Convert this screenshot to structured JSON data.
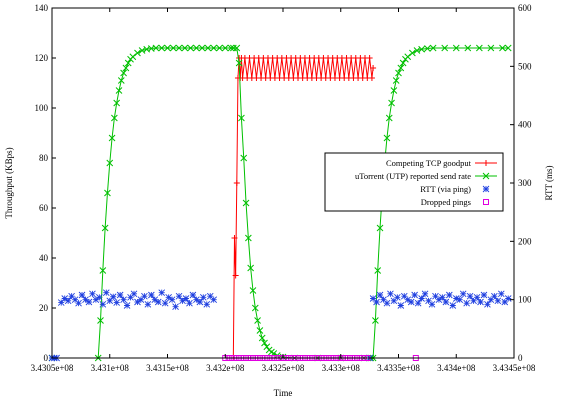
{
  "chart_data": {
    "type": "scatter",
    "title": "",
    "xlabel": "Time",
    "ylabel": "Throughput (KBps)",
    "y2label": "RTT (ms)",
    "xlim": [
      343050000,
      343450000
    ],
    "ylim": [
      0,
      140
    ],
    "y2lim": [
      0,
      600
    ],
    "x_ticks": [
      343050000,
      343100000,
      343150000,
      343200000,
      343250000,
      343300000,
      343350000,
      343400000,
      343450000
    ],
    "x_tick_labels": [
      "3.4305e+08",
      "3.431e+08",
      "3.4315e+08",
      "3.432e+08",
      "3.4325e+08",
      "3.433e+08",
      "3.4335e+08",
      "3.434e+08",
      "3.4345e+08"
    ],
    "y_ticks": [
      0,
      20,
      40,
      60,
      80,
      100,
      120,
      140
    ],
    "y2_ticks": [
      0,
      100,
      200,
      300,
      400,
      500,
      600
    ],
    "legend_position": "right",
    "series": [
      {
        "name": "Competing TCP goodput",
        "axis": "left",
        "color": "#ff0000",
        "marker": "plus",
        "style": "linespoints",
        "x": [
          343207000,
          343208000,
          343209000,
          343210000,
          343211000,
          343212000,
          343213000,
          343214000,
          343215000,
          343217000,
          343219000,
          343221000,
          343223000,
          343225000,
          343227000,
          343229000,
          343231000,
          343233000,
          343235000,
          343237000,
          343239000,
          343241000,
          343243000,
          343245000,
          343247000,
          343249000,
          343251000,
          343253000,
          343255000,
          343257000,
          343259000,
          343261000,
          343263000,
          343265000,
          343267000,
          343269000,
          343271000,
          343273000,
          343275000,
          343277000,
          343279000,
          343281000,
          343283000,
          343285000,
          343287000,
          343289000,
          343291000,
          343293000,
          343295000,
          343297000,
          343299000,
          343301000,
          343303000,
          343305000,
          343307000,
          343309000,
          343311000,
          343313000,
          343315000,
          343317000,
          343319000,
          343321000,
          343323000,
          343325000,
          343327000,
          343328000
        ],
        "y": [
          0,
          48,
          33,
          70,
          112,
          120,
          112,
          120,
          112,
          120,
          112,
          120,
          112,
          120,
          112,
          120,
          112,
          120,
          112,
          120,
          112,
          120,
          112,
          120,
          112,
          120,
          112,
          120,
          112,
          120,
          112,
          120,
          112,
          120,
          112,
          120,
          112,
          120,
          112,
          120,
          112,
          120,
          112,
          120,
          112,
          120,
          112,
          120,
          112,
          120,
          112,
          120,
          112,
          120,
          112,
          120,
          112,
          120,
          112,
          120,
          112,
          120,
          112,
          120,
          112,
          116
        ]
      },
      {
        "name": "uTorrent (UTP) reported send rate",
        "axis": "left",
        "color": "#00c000",
        "marker": "x",
        "style": "linespoints",
        "x": [
          343050000,
          343090000,
          343092000,
          343094000,
          343096000,
          343098000,
          343100000,
          343102000,
          343104000,
          343106000,
          343108000,
          343110000,
          343112000,
          343114000,
          343116000,
          343118000,
          343120000,
          343124000,
          343128000,
          343132000,
          343136000,
          343140000,
          343145000,
          343150000,
          343155000,
          343160000,
          343165000,
          343170000,
          343175000,
          343180000,
          343185000,
          343190000,
          343195000,
          343200000,
          343205000,
          343207000,
          343210000,
          343212000,
          343214000,
          343216000,
          343218000,
          343220000,
          343222000,
          343224000,
          343226000,
          343228000,
          343230000,
          343232000,
          343234000,
          343236000,
          343238000,
          343240000,
          343242000,
          343245000,
          343250000,
          343260000,
          343280000,
          343300000,
          343320000,
          343326000,
          343328000,
          343330000,
          343332000,
          343334000,
          343336000,
          343338000,
          343340000,
          343342000,
          343344000,
          343346000,
          343348000,
          343350000,
          343352000,
          343354000,
          343356000,
          343358000,
          343362000,
          343366000,
          343370000,
          343375000,
          343380000,
          343390000,
          343400000,
          343410000,
          343420000,
          343430000,
          343440000,
          343445000
        ],
        "y": [
          0,
          0,
          15,
          35,
          52,
          66,
          78,
          88,
          96,
          102,
          107,
          111,
          114,
          116,
          118,
          119.5,
          120.5,
          122,
          123,
          123.5,
          123.8,
          124,
          124,
          124,
          124,
          124,
          124,
          124,
          124,
          124,
          124,
          124,
          124,
          124,
          124,
          124,
          124,
          118,
          96,
          80,
          62,
          48,
          36,
          27,
          20,
          15,
          11,
          8,
          6,
          4.5,
          3.2,
          2.4,
          1.8,
          1.0,
          0.4,
          0,
          0,
          0,
          0,
          0,
          0,
          15,
          35,
          52,
          66,
          78,
          88,
          96,
          102,
          107,
          111,
          114,
          116,
          118,
          119.5,
          120.5,
          122,
          123,
          123.5,
          123.8,
          124,
          124,
          124,
          124,
          124,
          124,
          124,
          124
        ]
      },
      {
        "name": "RTT (via ping)",
        "axis": "right",
        "color": "#2040e0",
        "marker": "star",
        "style": "points",
        "x": [
          343050000,
          343052000,
          343054000,
          343058000,
          343061000,
          343064000,
          343067000,
          343070000,
          343073000,
          343076000,
          343079000,
          343082000,
          343085000,
          343088000,
          343091000,
          343094000,
          343097000,
          343100000,
          343103000,
          343106000,
          343109000,
          343112000,
          343115000,
          343118000,
          343121000,
          343124000,
          343127000,
          343130000,
          343133000,
          343136000,
          343139000,
          343142000,
          343145000,
          343148000,
          343151000,
          343154000,
          343157000,
          343160000,
          343163000,
          343166000,
          343169000,
          343172000,
          343175000,
          343178000,
          343181000,
          343184000,
          343187000,
          343190000,
          343325000,
          343328000,
          343331000,
          343334000,
          343337000,
          343340000,
          343343000,
          343346000,
          343349000,
          343352000,
          343355000,
          343358000,
          343361000,
          343364000,
          343367000,
          343370000,
          343373000,
          343376000,
          343379000,
          343382000,
          343385000,
          343388000,
          343391000,
          343394000,
          343397000,
          343400000,
          343403000,
          343406000,
          343409000,
          343412000,
          343415000,
          343418000,
          343421000,
          343424000,
          343427000,
          343430000,
          343433000,
          343436000,
          343439000,
          343442000,
          343445000
        ],
        "y": [
          0,
          0,
          0,
          95,
          102,
          98,
          106,
          100,
          94,
          108,
          100,
          96,
          110,
          100,
          104,
          92,
          112,
          98,
          105,
          95,
          108,
          100,
          90,
          104,
          110,
          96,
          100,
          106,
          92,
          108,
          100,
          96,
          112,
          94,
          104,
          100,
          88,
          106,
          98,
          102,
          94,
          108,
          100,
          96,
          104,
          92,
          106,
          100,
          0,
          102,
          96,
          108,
          100,
          94,
          110,
          98,
          104,
          90,
          106,
          100,
          96,
          108,
          94,
          102,
          110,
          98,
          92,
          106,
          100,
          104,
          96,
          108,
          90,
          102,
          100,
          110,
          94,
          106,
          98,
          104,
          96,
          108,
          92,
          100,
          106,
          98,
          110,
          96,
          102
        ]
      },
      {
        "name": "Dropped pings",
        "axis": "right",
        "color": "#e000e0",
        "marker": "square",
        "style": "points",
        "x": [
          343200000,
          343203000,
          343206000,
          343209000,
          343212000,
          343215000,
          343218000,
          343221000,
          343224000,
          343227000,
          343230000,
          343233000,
          343236000,
          343239000,
          343242000,
          343245000,
          343248000,
          343251000,
          343254000,
          343257000,
          343260000,
          343263000,
          343266000,
          343269000,
          343272000,
          343275000,
          343278000,
          343281000,
          343284000,
          343287000,
          343290000,
          343293000,
          343296000,
          343299000,
          343302000,
          343305000,
          343308000,
          343311000,
          343314000,
          343317000,
          343320000,
          343323000,
          343365000
        ],
        "y": [
          0,
          0,
          0,
          0,
          0,
          0,
          0,
          0,
          0,
          0,
          0,
          0,
          0,
          0,
          0,
          0,
          0,
          0,
          0,
          0,
          0,
          0,
          0,
          0,
          0,
          0,
          0,
          0,
          0,
          0,
          0,
          0,
          0,
          0,
          0,
          0,
          0,
          0,
          0,
          0,
          0,
          0,
          0
        ]
      }
    ]
  }
}
